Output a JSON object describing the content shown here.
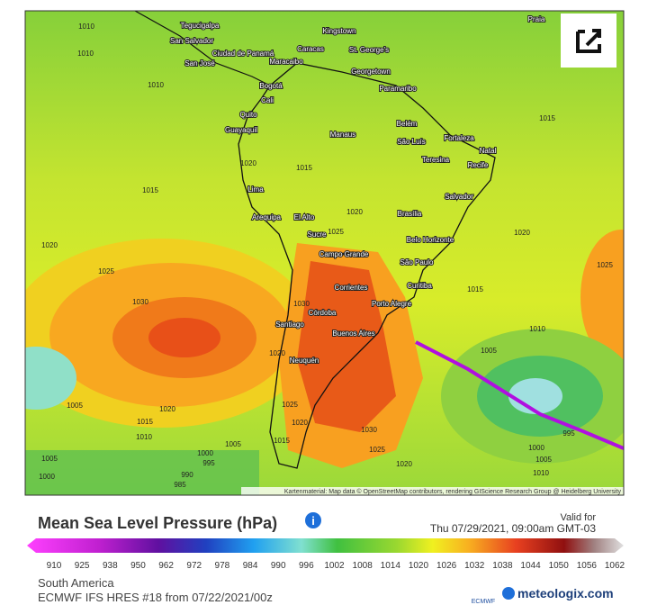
{
  "map": {
    "cities": [
      "Tegucigalpa",
      "San Salvador",
      "San José",
      "Ciudad de Panamá",
      "Maracaibo",
      "Caracas",
      "Kingstown",
      "St. George's",
      "Georgetown",
      "Paramaribo",
      "Bogotá",
      "Cali",
      "Quito",
      "Guayaquil",
      "Manaus",
      "Belém",
      "São Luís",
      "Fortaleza",
      "Natal",
      "Teresina",
      "Recife",
      "Salvador",
      "Lima",
      "Brasília",
      "Arequipa",
      "El Alto",
      "Sucre",
      "Belo Horizonte",
      "Campo Grande",
      "São Paulo",
      "Curitiba",
      "Corrientes",
      "Porto Alegre",
      "Córdoba",
      "Santiago",
      "Buenos Aires",
      "Neuquén",
      "Praia"
    ],
    "isobars": [
      1010,
      1010,
      1010,
      1015,
      1020,
      1025,
      1030,
      1020,
      1015,
      1010,
      1005,
      1005,
      1000,
      995,
      990,
      985,
      1000,
      1005,
      1015,
      1020,
      1025,
      1015,
      1010,
      1005,
      995,
      1000,
      1005,
      1010,
      1020,
      1025,
      1030,
      1020,
      1025,
      1015,
      1020,
      1015,
      1020,
      1025,
      1030,
      1020
    ],
    "attribution": "Kartenmaterial: Map data © OpenStreetMap contributors, rendering GIScience Research Group @ Heidelberg University"
  },
  "legend": {
    "title": "Mean Sea Level Pressure (hPa)",
    "valid_for": "Valid for",
    "datetime": "Thu 07/29/2021, 09:00am GMT-03",
    "ticks": [
      910,
      925,
      938,
      950,
      962,
      972,
      978,
      984,
      990,
      996,
      1002,
      1008,
      1014,
      1020,
      1026,
      1032,
      1038,
      1044,
      1050,
      1056,
      1062
    ]
  },
  "footer": {
    "region": "South America",
    "model": "ECMWF IFS HRES #18 from 07/22/2021/00z",
    "ecmwf": "ECMWF",
    "brand": "meteologix.com"
  }
}
